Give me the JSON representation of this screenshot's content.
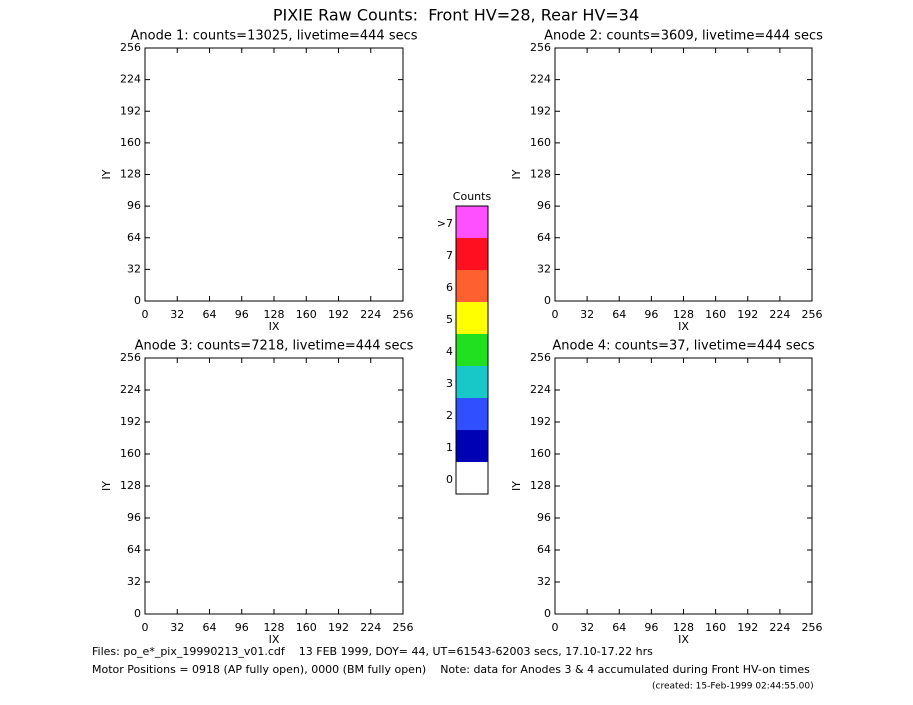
{
  "title": "PIXIE Raw Counts:  Front HV=28, Rear HV=34",
  "chart_data": [
    {
      "type": "heatmap",
      "title": "Anode 1: counts=13025, livetime=444 secs",
      "xlabel": "IX",
      "ylabel": "IY",
      "xlim": [
        0,
        256
      ],
      "ylim": [
        0,
        256
      ],
      "xticks": [
        0,
        32,
        64,
        96,
        128,
        160,
        192,
        224,
        256
      ],
      "yticks": [
        0,
        32,
        64,
        96,
        128,
        160,
        192,
        224,
        256
      ]
    },
    {
      "type": "heatmap",
      "title": "Anode 2: counts=3609, livetime=444 secs",
      "xlabel": "IX",
      "ylabel": "IY",
      "xlim": [
        0,
        256
      ],
      "ylim": [
        0,
        256
      ],
      "xticks": [
        0,
        32,
        64,
        96,
        128,
        160,
        192,
        224,
        256
      ],
      "yticks": [
        0,
        32,
        64,
        96,
        128,
        160,
        192,
        224,
        256
      ]
    },
    {
      "type": "heatmap",
      "title": "Anode 3: counts=7218, livetime=444 secs",
      "xlabel": "IX",
      "ylabel": "IY",
      "xlim": [
        0,
        256
      ],
      "ylim": [
        0,
        256
      ],
      "xticks": [
        0,
        32,
        64,
        96,
        128,
        160,
        192,
        224,
        256
      ],
      "yticks": [
        0,
        32,
        64,
        96,
        128,
        160,
        192,
        224,
        256
      ]
    },
    {
      "type": "heatmap",
      "title": "Anode 4: counts=37, livetime=444 secs",
      "xlabel": "IX",
      "ylabel": "IY",
      "xlim": [
        0,
        256
      ],
      "ylim": [
        0,
        256
      ],
      "xticks": [
        0,
        32,
        64,
        96,
        128,
        160,
        192,
        224,
        256
      ],
      "yticks": [
        0,
        32,
        64,
        96,
        128,
        160,
        192,
        224,
        256
      ]
    },
    {
      "type": "colorbar",
      "title": "Counts",
      "categories": [
        "0",
        "1",
        "2",
        "3",
        "4",
        "5",
        "6",
        "7",
        ">7"
      ],
      "colors": [
        "#ffffff",
        "#0000b4",
        "#3050ff",
        "#18c8c8",
        "#20e020",
        "#ffff00",
        "#ff6030",
        "#ff1020",
        "#ff50ff"
      ]
    }
  ],
  "footer": {
    "files": "Files: po_e*_pix_19990213_v01.cdf    13 FEB 1999, DOY= 44, UT=61543-62003 secs, 17.10-17.22 hrs",
    "motor": "Motor Positions = 0918 (AP fully open), 0000 (BM fully open)    Note: data for Anodes 3 & 4 accumulated during Front HV-on times",
    "created": "(created: 15-Feb-1999 02:44:55.00)"
  }
}
